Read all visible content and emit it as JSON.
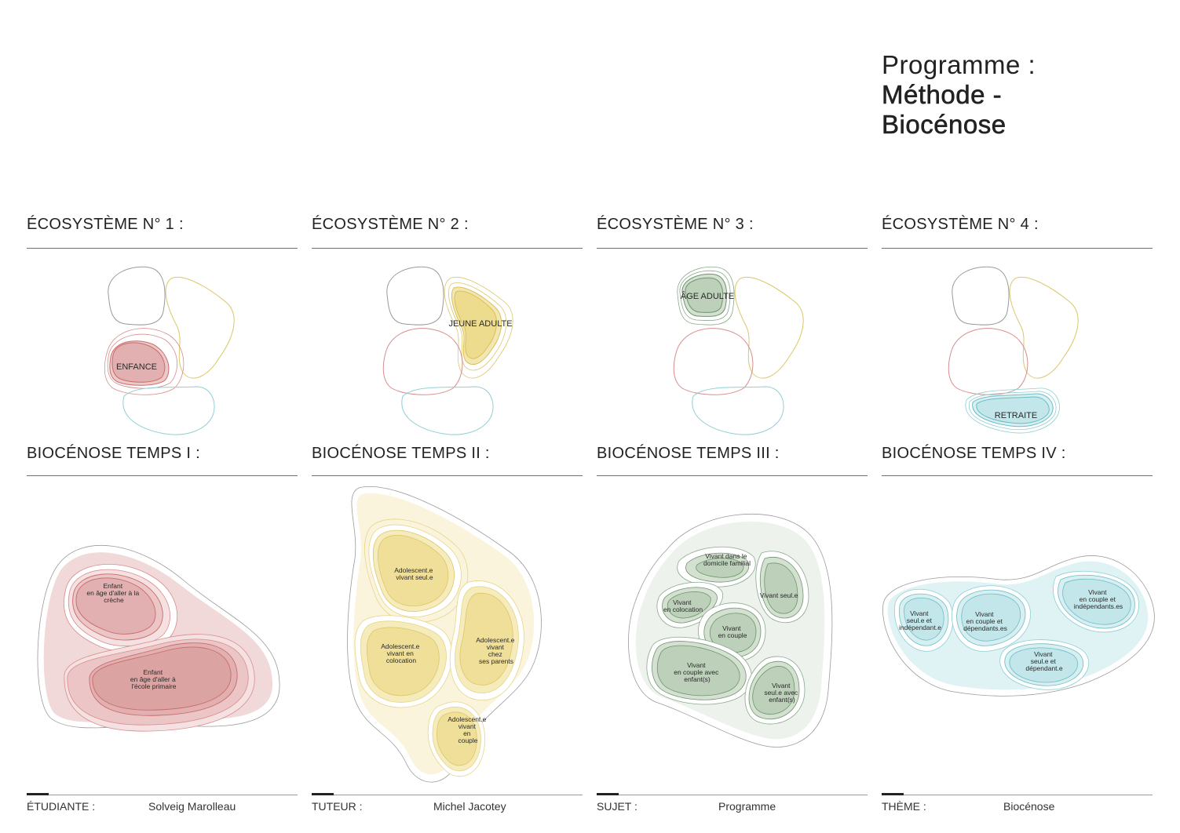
{
  "title": {
    "line1": "Programme :",
    "line2": "Méthode -",
    "line3": "Biocénose"
  },
  "ecosystems": [
    {
      "heading": "ÉCOSYSTÈME N° 1 :",
      "label": "ENFANCE"
    },
    {
      "heading": "ÉCOSYSTÈME N° 2 :",
      "label": "JEUNE ADULTE"
    },
    {
      "heading": "ÉCOSYSTÈME N° 3 :",
      "label": "ÂGE ADULTE"
    },
    {
      "heading": "ÉCOSYSTÈME N° 4 :",
      "label": "RETRAITE"
    }
  ],
  "biocenoses": [
    {
      "heading": "BIOCÉNOSE TEMPS I :",
      "labels": [
        [
          "Enfant",
          "en âge d'aller à la",
          "crèche"
        ],
        [
          "Enfant",
          "en âge d'aller à",
          "l'école primaire"
        ]
      ]
    },
    {
      "heading": "BIOCÉNOSE TEMPS II :",
      "labels": [
        [
          "Adolescent.e",
          "vivant seul.e"
        ],
        [
          "Adolescent.e",
          "vivant en",
          "colocation"
        ],
        [
          "Adolescent.e",
          "vivant",
          "chez",
          "ses parents"
        ],
        [
          "Adolescent.e",
          "vivant",
          "en",
          "couple"
        ]
      ]
    },
    {
      "heading": "BIOCÉNOSE TEMPS III :",
      "labels": [
        [
          "Vivant dans le",
          "domicile familial"
        ],
        [
          "Vivant seul.e"
        ],
        [
          "Vivant",
          "en colocation"
        ],
        [
          "Vivant",
          "en couple"
        ],
        [
          "Vivant",
          "en couple avec",
          "enfant(s)"
        ],
        [
          "Vivant",
          "seul.e avec",
          "enfant(s)"
        ]
      ]
    },
    {
      "heading": "BIOCÉNOSE TEMPS IV :",
      "labels": [
        [
          "Vivant",
          "seul.e et",
          "indépendant.e"
        ],
        [
          "Vivant",
          "en couple et",
          "dépendants.es"
        ],
        [
          "Vivant",
          "en couple et",
          "indépendants.es"
        ],
        [
          "Vivant",
          "seul.e et",
          "dépendant.e"
        ]
      ]
    }
  ],
  "footer": [
    {
      "key": "ÉTUDIANTE :",
      "value": "Solveig Marolleau"
    },
    {
      "key": "TUTEUR :",
      "value": "Michel Jacotey"
    },
    {
      "key": "SUJET :",
      "value": "Programme"
    },
    {
      "key": "THÈME :",
      "value": "Biocénose"
    }
  ],
  "colors": {
    "enfance": "#c96b6b",
    "enfance_fill": "#e9c3c3",
    "jeune_adulte": "#d9c15a",
    "jeune_adulte_fill": "#f1e4a8",
    "age_adulte": "#6f9470",
    "age_adulte_fill": "#c9d8c6",
    "retraite": "#6cbcc4",
    "retraite_fill": "#c8e7ea",
    "neutral": "#9a9a9a"
  }
}
